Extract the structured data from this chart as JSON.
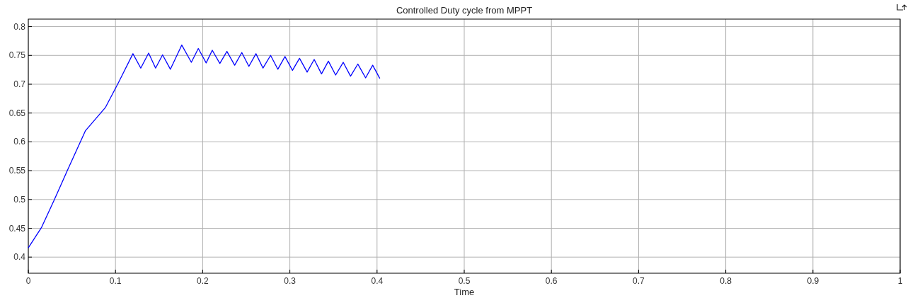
{
  "chart_data": {
    "type": "line",
    "title": "Controlled Duty cycle from MPPT",
    "xlabel": "Time",
    "xlim": [
      0,
      1
    ],
    "xticks": [
      0,
      0.1,
      0.2,
      0.3,
      0.4,
      0.5,
      0.6,
      0.7,
      0.8,
      0.9,
      1
    ],
    "ylim": [
      0.372,
      0.813
    ],
    "yticks": [
      0.4,
      0.45,
      0.5,
      0.55,
      0.6,
      0.65,
      0.7,
      0.75,
      0.8
    ],
    "grid": true,
    "series": [
      {
        "color": "#0000ff",
        "x": [
          0,
          0.015,
          0.03,
          0.045,
          0.0654,
          0.0886,
          0.1035,
          0.12,
          0.129,
          0.138,
          0.146,
          0.154,
          0.163,
          0.176,
          0.187,
          0.195,
          0.204,
          0.211,
          0.2197,
          0.2278,
          0.2367,
          0.2449,
          0.253,
          0.2611,
          0.2692,
          0.2779,
          0.2862,
          0.2944,
          0.303,
          0.3111,
          0.3198,
          0.3279,
          0.3363,
          0.3442,
          0.3525,
          0.3612,
          0.3696,
          0.378,
          0.3869,
          0.395,
          0.4032
        ],
        "values": [
          0.416,
          0.451,
          0.5,
          0.551,
          0.619,
          0.66,
          0.703,
          0.753,
          0.728,
          0.754,
          0.728,
          0.751,
          0.726,
          0.768,
          0.738,
          0.762,
          0.737,
          0.759,
          0.736,
          0.757,
          0.733,
          0.755,
          0.731,
          0.753,
          0.728,
          0.75,
          0.726,
          0.748,
          0.724,
          0.745,
          0.721,
          0.743,
          0.718,
          0.74,
          0.716,
          0.738,
          0.714,
          0.735,
          0.711,
          0.733,
          0.71
        ]
      }
    ]
  }
}
